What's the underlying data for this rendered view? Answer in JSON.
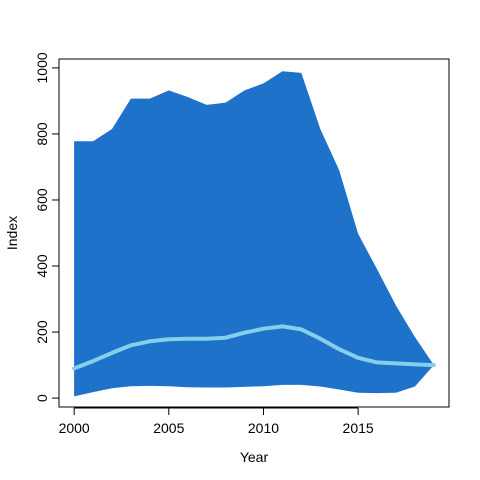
{
  "chart_data": {
    "type": "area",
    "xlabel": "Year",
    "ylabel": "Index",
    "xlim": [
      1999.2,
      2019.8
    ],
    "ylim": [
      -27,
      1027
    ],
    "x_ticks": [
      2000,
      2005,
      2010,
      2015
    ],
    "x_tick_labels": [
      "2000",
      "2005",
      "2010",
      "2015"
    ],
    "y_ticks": [
      0,
      200,
      400,
      600,
      800,
      1000
    ],
    "y_tick_labels": [
      "0",
      "200",
      "400",
      "600",
      "800",
      "1000"
    ],
    "grid": false,
    "band": {
      "x": [
        2000,
        2001,
        2002,
        2003,
        2004,
        2005,
        2006,
        2007,
        2008,
        2009,
        2010,
        2011,
        2012,
        2013,
        2014,
        2015,
        2016,
        2017,
        2018,
        2019
      ],
      "upper": [
        778,
        778,
        815,
        907,
        907,
        932,
        912,
        888,
        895,
        932,
        953,
        990,
        985,
        815,
        690,
        498,
        390,
        280,
        185,
        100
      ],
      "lower": [
        5,
        18,
        30,
        36,
        37,
        36,
        33,
        32,
        32,
        34,
        36,
        40,
        40,
        35,
        26,
        16,
        15,
        16,
        35,
        100
      ],
      "color": "#1f72c9"
    },
    "series": [
      {
        "x": [
          2000,
          2001,
          2002,
          2003,
          2004,
          2005,
          2006,
          2007,
          2008,
          2009,
          2010,
          2011,
          2012,
          2013,
          2014,
          2015,
          2016,
          2017,
          2018,
          2019
        ],
        "values": [
          90,
          112,
          137,
          160,
          172,
          178,
          180,
          180,
          183,
          198,
          210,
          217,
          208,
          180,
          148,
          122,
          108,
          105,
          102,
          100
        ],
        "color": "#87ceeb"
      }
    ]
  }
}
